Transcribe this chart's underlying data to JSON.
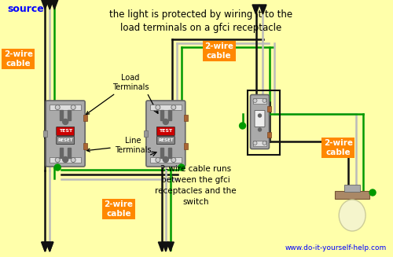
{
  "bg": "#FFFFAA",
  "blk": "#111111",
  "wht": "#BBBBBB",
  "grn": "#009900",
  "gray": "#AAAAAA",
  "dgray": "#666666",
  "orange": "#FF8800",
  "brown": "#AA6633",
  "title": "the light is protected by wiring it to the\nload terminals on a gfci receptacle",
  "source": "source",
  "website": "www.do-it-yourself-help.com",
  "note": "2-wire cable runs\nbetween the gfci\nreceptacles and the\nswitch"
}
